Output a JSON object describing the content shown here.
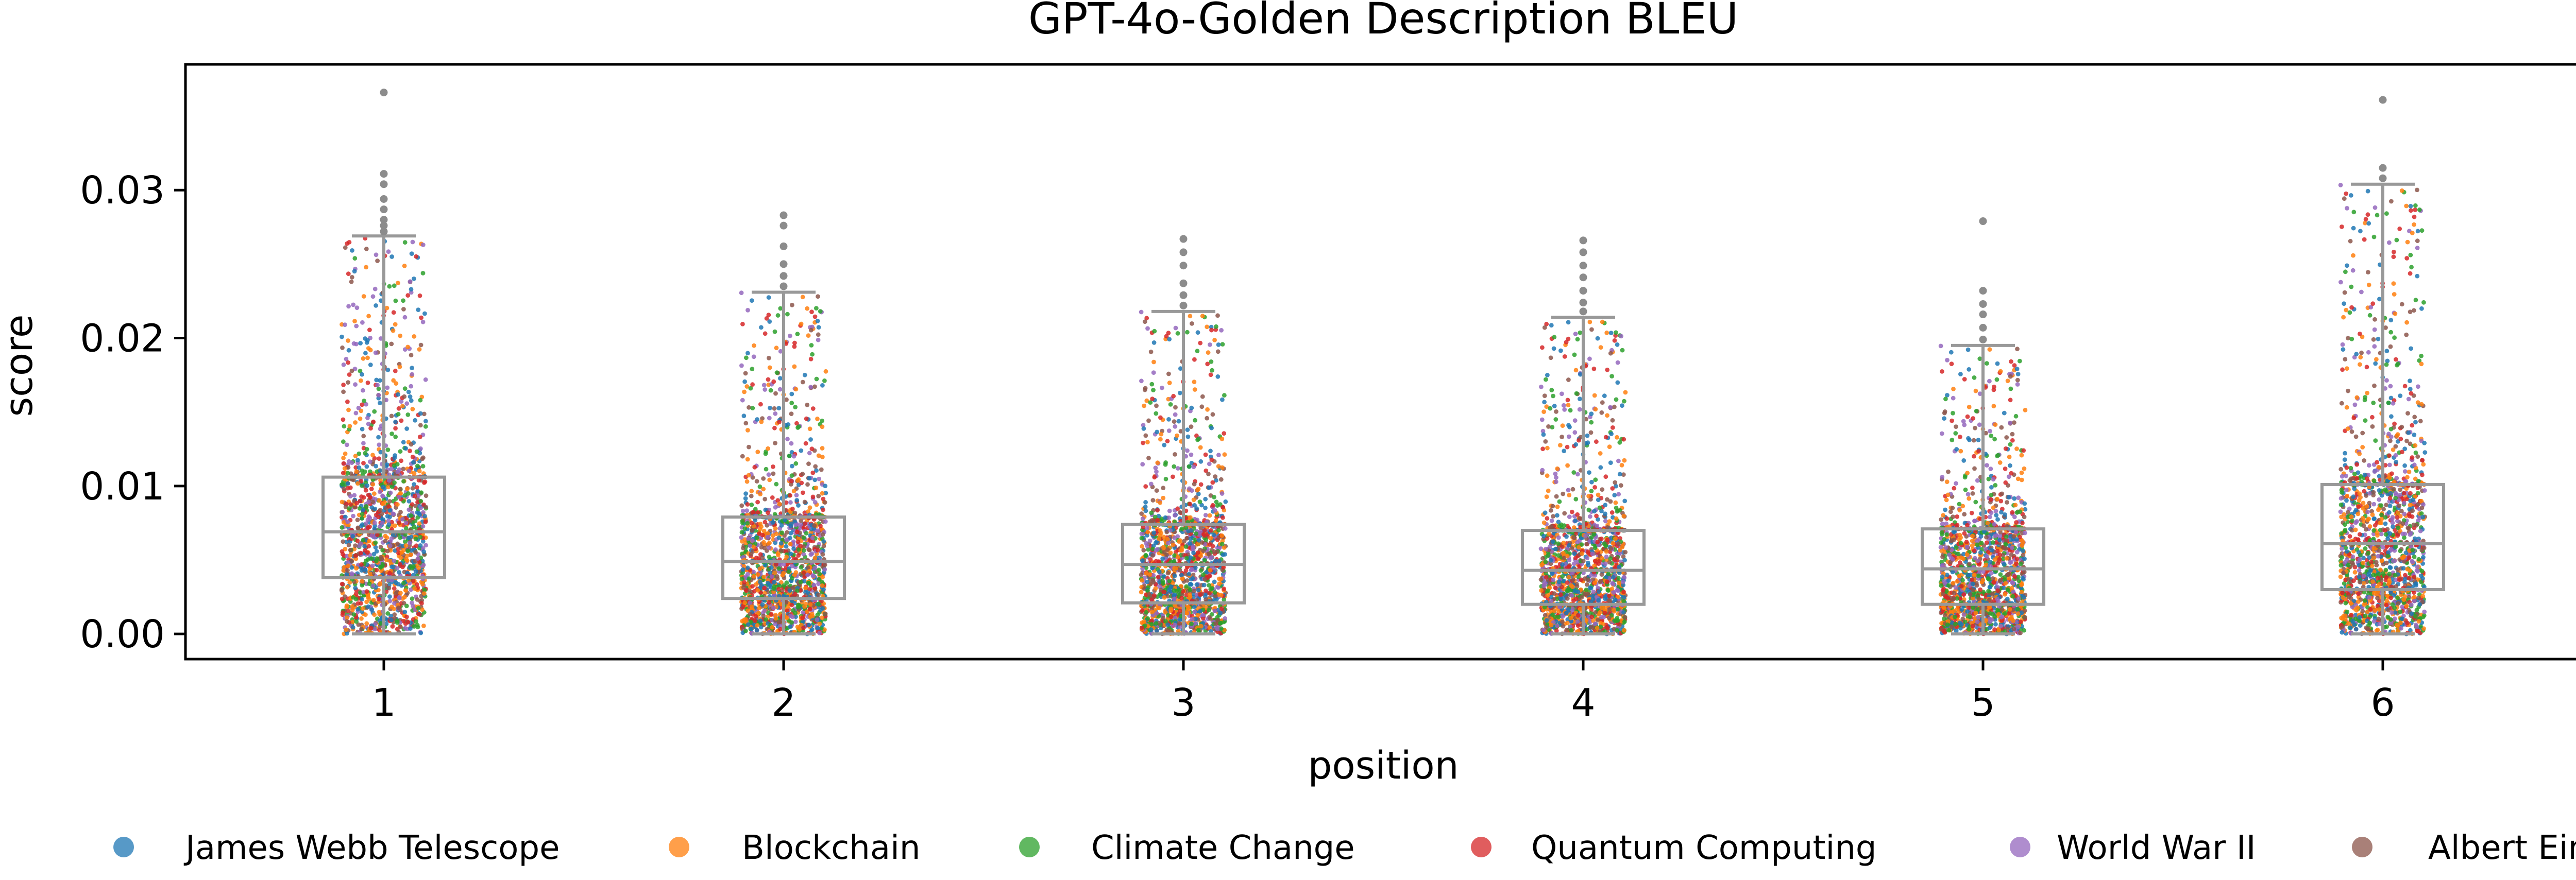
{
  "chart_data": {
    "type": "box+strip",
    "title": "GPT-4o-Golden Description BLEU",
    "xlabel": "position",
    "ylabel": "score",
    "categories": [
      "1",
      "2",
      "3",
      "4",
      "5",
      "6"
    ],
    "ylim": [
      -0.0017,
      0.0385
    ],
    "yticks": [
      0.0,
      0.01,
      0.02,
      0.03
    ],
    "ytick_labels": [
      "0.00",
      "0.01",
      "0.02",
      "0.03"
    ],
    "grid": false,
    "legend_position": "bottom",
    "box_color": "#999999",
    "boxes": [
      {
        "position": "1",
        "whisker_low": 0.0,
        "q1": 0.0038,
        "median": 0.0069,
        "q3": 0.0106,
        "whisker_high": 0.0269,
        "outliers": [
          0.0272,
          0.0276,
          0.028,
          0.0287,
          0.0294,
          0.0304,
          0.0311,
          0.0366
        ]
      },
      {
        "position": "2",
        "whisker_low": 0.0,
        "q1": 0.0024,
        "median": 0.0049,
        "q3": 0.0079,
        "whisker_high": 0.0231,
        "outliers": [
          0.0235,
          0.0242,
          0.025,
          0.0262,
          0.0276,
          0.0283
        ]
      },
      {
        "position": "3",
        "whisker_low": 0.0,
        "q1": 0.0021,
        "median": 0.0047,
        "q3": 0.0074,
        "whisker_high": 0.0218,
        "outliers": [
          0.0222,
          0.0229,
          0.0237,
          0.0249,
          0.0258,
          0.0267
        ]
      },
      {
        "position": "4",
        "whisker_low": 0.0,
        "q1": 0.002,
        "median": 0.0043,
        "q3": 0.007,
        "whisker_high": 0.0214,
        "outliers": [
          0.0218,
          0.0224,
          0.0232,
          0.0241,
          0.0249,
          0.0258,
          0.0266
        ]
      },
      {
        "position": "5",
        "whisker_low": 0.0,
        "q1": 0.002,
        "median": 0.0044,
        "q3": 0.0071,
        "whisker_high": 0.0195,
        "outliers": [
          0.0199,
          0.0207,
          0.0216,
          0.0223,
          0.0232,
          0.0279
        ]
      },
      {
        "position": "6",
        "whisker_low": 0.0,
        "q1": 0.003,
        "median": 0.0061,
        "q3": 0.0101,
        "whisker_high": 0.0304,
        "outliers": [
          0.0308,
          0.0315,
          0.0361
        ]
      }
    ],
    "series": [
      {
        "name": "James Webb Telescope",
        "color": "#1f77b4"
      },
      {
        "name": "Blockchain",
        "color": "#ff7f0e"
      },
      {
        "name": "Climate Change",
        "color": "#2ca02c"
      },
      {
        "name": "Quantum Computing",
        "color": "#d62728"
      },
      {
        "name": "World War II",
        "color": "#9467bd"
      },
      {
        "name": "Albert Einstein",
        "color": "#8c564b"
      }
    ]
  }
}
